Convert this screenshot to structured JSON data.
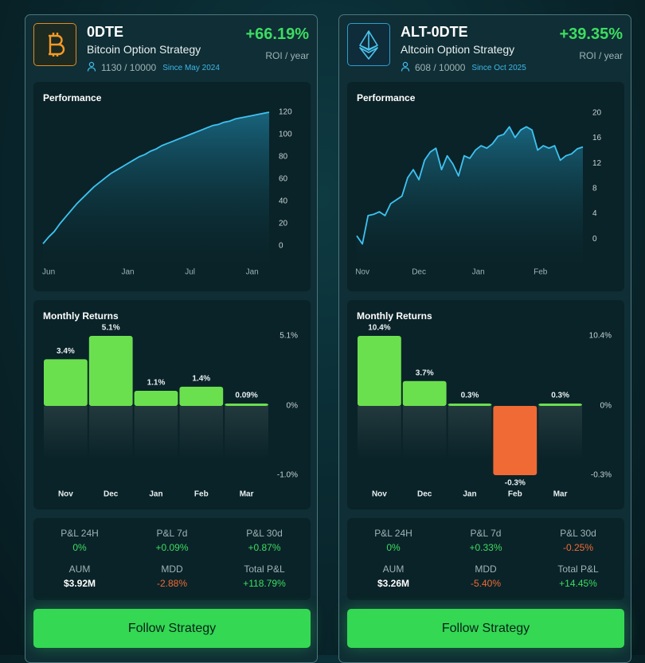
{
  "cards": [
    {
      "title": "0DTE",
      "subtitle": "Bitcoin Option Strategy",
      "users": "1130 / 10000",
      "since": "Since May 2024",
      "roi": "+66.19%",
      "roi_label": "ROI / year",
      "performance": {
        "type": "line",
        "title": "Performance",
        "color": "#3ec3f2",
        "values": [
          2,
          8,
          13,
          20,
          26,
          32,
          38,
          43,
          48,
          53,
          57,
          61,
          65,
          68,
          71,
          74,
          77,
          80,
          82,
          85,
          87,
          90,
          92,
          94,
          96,
          98,
          100,
          102,
          104,
          106,
          108,
          109,
          111,
          112,
          114,
          115,
          116,
          117,
          118,
          119,
          120
        ],
        "xlim": [
          0,
          40
        ],
        "xticks": [
          {
            "value": 1,
            "label": "Jun"
          },
          {
            "value": 15,
            "label": "Jan"
          },
          {
            "value": 26,
            "label": "Jul"
          },
          {
            "value": 37,
            "label": "Jan"
          }
        ],
        "ylim": [
          -5,
          125
        ],
        "yticks": [
          0,
          20,
          40,
          60,
          80,
          100,
          120
        ]
      },
      "monthly": {
        "type": "bar",
        "title": "Monthly Returns",
        "color": "#6be04f",
        "negative_color": "#f06a35",
        "categories": [
          "Nov",
          "Dec",
          "Jan",
          "Feb",
          "Mar"
        ],
        "values": [
          3.4,
          5.1,
          1.1,
          1.4,
          0.09
        ],
        "value_labels": [
          "3.4%",
          "5.1%",
          "1.1%",
          "1.4%",
          "0.09%"
        ],
        "ylim": [
          -1.0,
          5.1
        ],
        "yticks": [
          {
            "value": 5.1,
            "label": "5.1%"
          },
          {
            "value": 0,
            "label": "0%"
          },
          {
            "value": -1.0,
            "label": "-1.0%"
          }
        ]
      },
      "stats": [
        {
          "label": "P&L 24H",
          "value": "0%",
          "color": "#3ddc62"
        },
        {
          "label": "P&L 7d",
          "value": "+0.09%",
          "color": "#3ddc62"
        },
        {
          "label": "P&L 30d",
          "value": "+0.87%",
          "color": "#3ddc62"
        },
        {
          "label": "AUM",
          "value": "$3.92M",
          "color": "#ffffff"
        },
        {
          "label": "MDD",
          "value": "-2.88%",
          "color": "#f06a35"
        },
        {
          "label": "Total P&L",
          "value": "+118.79%",
          "color": "#3ddc62"
        }
      ],
      "button": "Follow Strategy"
    },
    {
      "title": "ALT-0DTE",
      "subtitle": "Altcoin Option Strategy",
      "users": "608 / 10000",
      "since": "Since Oct 2025",
      "roi": "+39.35%",
      "roi_label": "ROI / year",
      "performance": {
        "type": "line",
        "title": "Performance",
        "color": "#3ec3f2",
        "values": [
          0.5,
          -0.8,
          3.7,
          3.9,
          4.3,
          3.7,
          5.6,
          6.2,
          6.8,
          9.7,
          11.0,
          9.4,
          12.5,
          13.8,
          14.4,
          11.0,
          13.2,
          11.9,
          10.0,
          13.2,
          12.8,
          14.1,
          14.8,
          14.4,
          15.1,
          16.3,
          16.6,
          17.8,
          16.1,
          17.3,
          17.8,
          17.3,
          14.1,
          14.8,
          14.4,
          14.8,
          12.5,
          13.2,
          13.5,
          14.3,
          14.6
        ],
        "xlim": [
          0,
          40
        ],
        "xticks": [
          {
            "value": 1,
            "label": "Nov"
          },
          {
            "value": 11,
            "label": "Dec"
          },
          {
            "value": 21.5,
            "label": "Jan"
          },
          {
            "value": 32.5,
            "label": "Feb"
          }
        ],
        "ylim": [
          -2,
          21
        ],
        "yticks": [
          0,
          4,
          8,
          12,
          16,
          20
        ]
      },
      "monthly": {
        "type": "bar",
        "title": "Monthly Returns",
        "color": "#6be04f",
        "negative_color": "#f06a35",
        "categories": [
          "Nov",
          "Dec",
          "Jan",
          "Feb",
          "Mar"
        ],
        "values": [
          10.4,
          3.7,
          0.3,
          -0.3,
          0.3
        ],
        "value_labels": [
          "10.4%",
          "3.7%",
          "0.3%",
          "-0.3%",
          "0.3%"
        ],
        "ylim": [
          -0.3,
          10.4
        ],
        "yticks": [
          {
            "value": 10.4,
            "label": "10.4%"
          },
          {
            "value": 0,
            "label": "0%"
          },
          {
            "value": -0.3,
            "label": "-0.3%"
          }
        ]
      },
      "stats": [
        {
          "label": "P&L 24H",
          "value": "0%",
          "color": "#3ddc62"
        },
        {
          "label": "P&L 7d",
          "value": "+0.33%",
          "color": "#3ddc62"
        },
        {
          "label": "P&L 30d",
          "value": "-0.25%",
          "color": "#f06a35"
        },
        {
          "label": "AUM",
          "value": "$3.26M",
          "color": "#ffffff"
        },
        {
          "label": "MDD",
          "value": "-5.40%",
          "color": "#f06a35"
        },
        {
          "label": "Total P&L",
          "value": "+14.45%",
          "color": "#3ddc62"
        }
      ],
      "button": "Follow Strategy"
    }
  ]
}
